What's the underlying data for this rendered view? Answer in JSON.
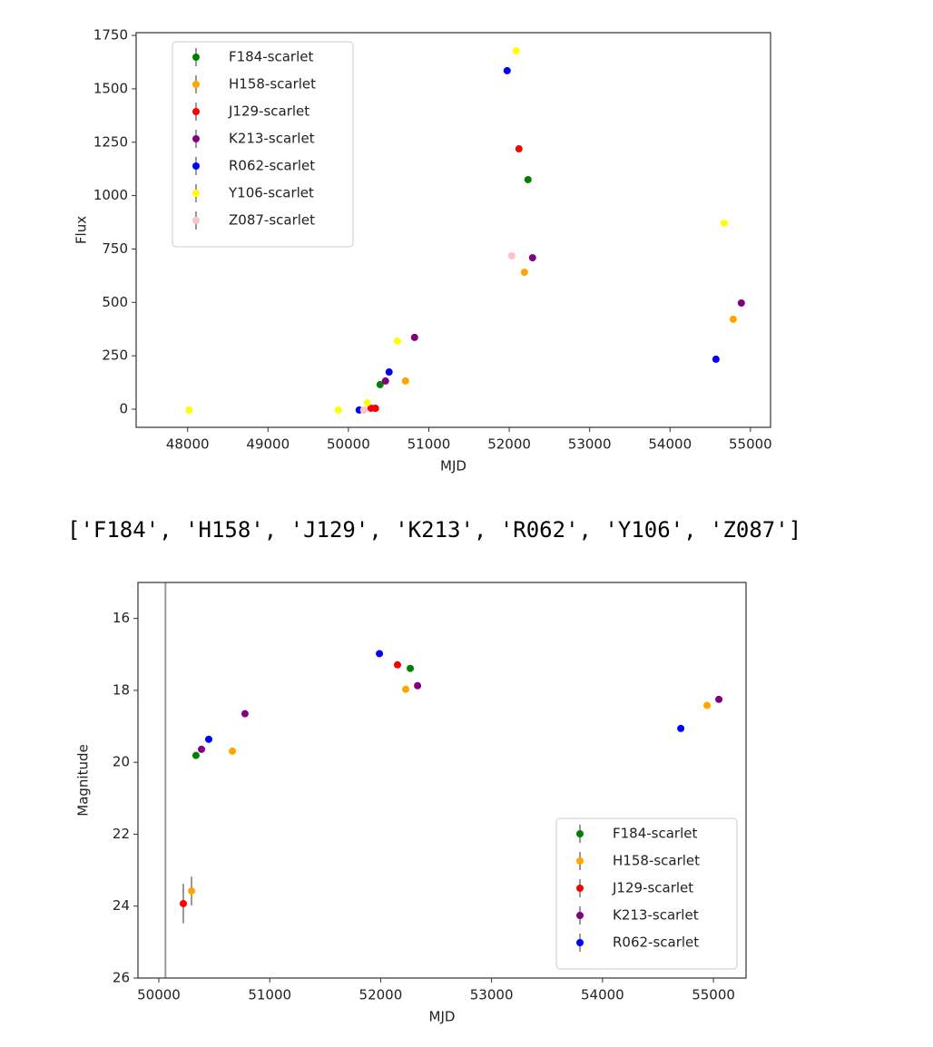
{
  "chart_data": [
    {
      "type": "scatter",
      "xlabel": "MJD",
      "ylabel": "Flux",
      "legend": "upper left",
      "grid": false,
      "xlim": [
        47360,
        55250
      ],
      "ylim": [
        -85,
        1763
      ],
      "xticks": [
        48000,
        49000,
        50000,
        51000,
        52000,
        53000,
        54000,
        55000
      ],
      "yticks": [
        0,
        250,
        500,
        750,
        1000,
        1250,
        1500,
        1750
      ],
      "series": [
        {
          "name": "F184-scarlet",
          "color": "#008000",
          "x": [
            50394,
            52234
          ],
          "values": [
            115,
            1075
          ]
        },
        {
          "name": "H158-scarlet",
          "color": "#ffa500",
          "x": [
            50326,
            50710,
            52189,
            54786
          ],
          "values": [
            4,
            132,
            641,
            421
          ]
        },
        {
          "name": "J129-scarlet",
          "color": "#ff0000",
          "x": [
            50281,
            50337,
            52121
          ],
          "values": [
            4,
            4,
            1219
          ]
        },
        {
          "name": "K213-scarlet",
          "color": "#800080",
          "x": [
            50461,
            50823,
            52290,
            54887
          ],
          "values": [
            132,
            336,
            709,
            497
          ]
        },
        {
          "name": "R062-scarlet",
          "color": "#0000ff",
          "x": [
            50134,
            50506,
            51974,
            54571
          ],
          "values": [
            -4,
            174,
            1585,
            234
          ]
        },
        {
          "name": "Y106-scarlet",
          "color": "#ffff00",
          "x": [
            48020,
            49874,
            50235,
            50608,
            52087,
            54673
          ],
          "values": [
            -4,
            -4,
            30,
            319,
            1678,
            871
          ]
        },
        {
          "name": "Z087-scarlet",
          "color": "#ffc0cb",
          "x": [
            50190,
            52031
          ],
          "values": [
            -4,
            718
          ]
        }
      ]
    },
    {
      "type": "scatter",
      "xlabel": "MJD",
      "ylabel": "Magnitude",
      "legend": "lower right",
      "grid": false,
      "xlim": [
        49812,
        55294
      ],
      "ylim": [
        26,
        15
      ],
      "xticks": [
        50000,
        51000,
        52000,
        53000,
        54000,
        55000
      ],
      "yticks": [
        16,
        18,
        20,
        22,
        24,
        26
      ],
      "vline": {
        "x": 50060,
        "color": "#999999"
      },
      "series": [
        {
          "name": "F184-scarlet",
          "color": "#008000",
          "x": [
            50335,
            52267
          ],
          "values": [
            19.81,
            17.39
          ]
        },
        {
          "name": "H158-scarlet",
          "color": "#ffa500",
          "x": [
            50295,
            50663,
            52226,
            54943
          ],
          "values": [
            23.58,
            19.69,
            17.97,
            18.42
          ],
          "errors": [
            0.4,
            null,
            null,
            null
          ]
        },
        {
          "name": "J129-scarlet",
          "color": "#ff0000",
          "x": [
            50221,
            52152
          ],
          "values": [
            23.93,
            17.29
          ],
          "errors": [
            0.55,
            null
          ]
        },
        {
          "name": "K213-scarlet",
          "color": "#800080",
          "x": [
            50385,
            50777,
            52333,
            55049
          ],
          "values": [
            19.64,
            18.65,
            17.87,
            18.25
          ]
        },
        {
          "name": "R062-scarlet",
          "color": "#0000ff",
          "x": [
            50450,
            51989,
            54706
          ],
          "values": [
            19.36,
            16.98,
            19.06
          ]
        }
      ]
    }
  ],
  "output_text": "['F184', 'H158', 'J129', 'K213', 'R062', 'Y106', 'Z087']"
}
